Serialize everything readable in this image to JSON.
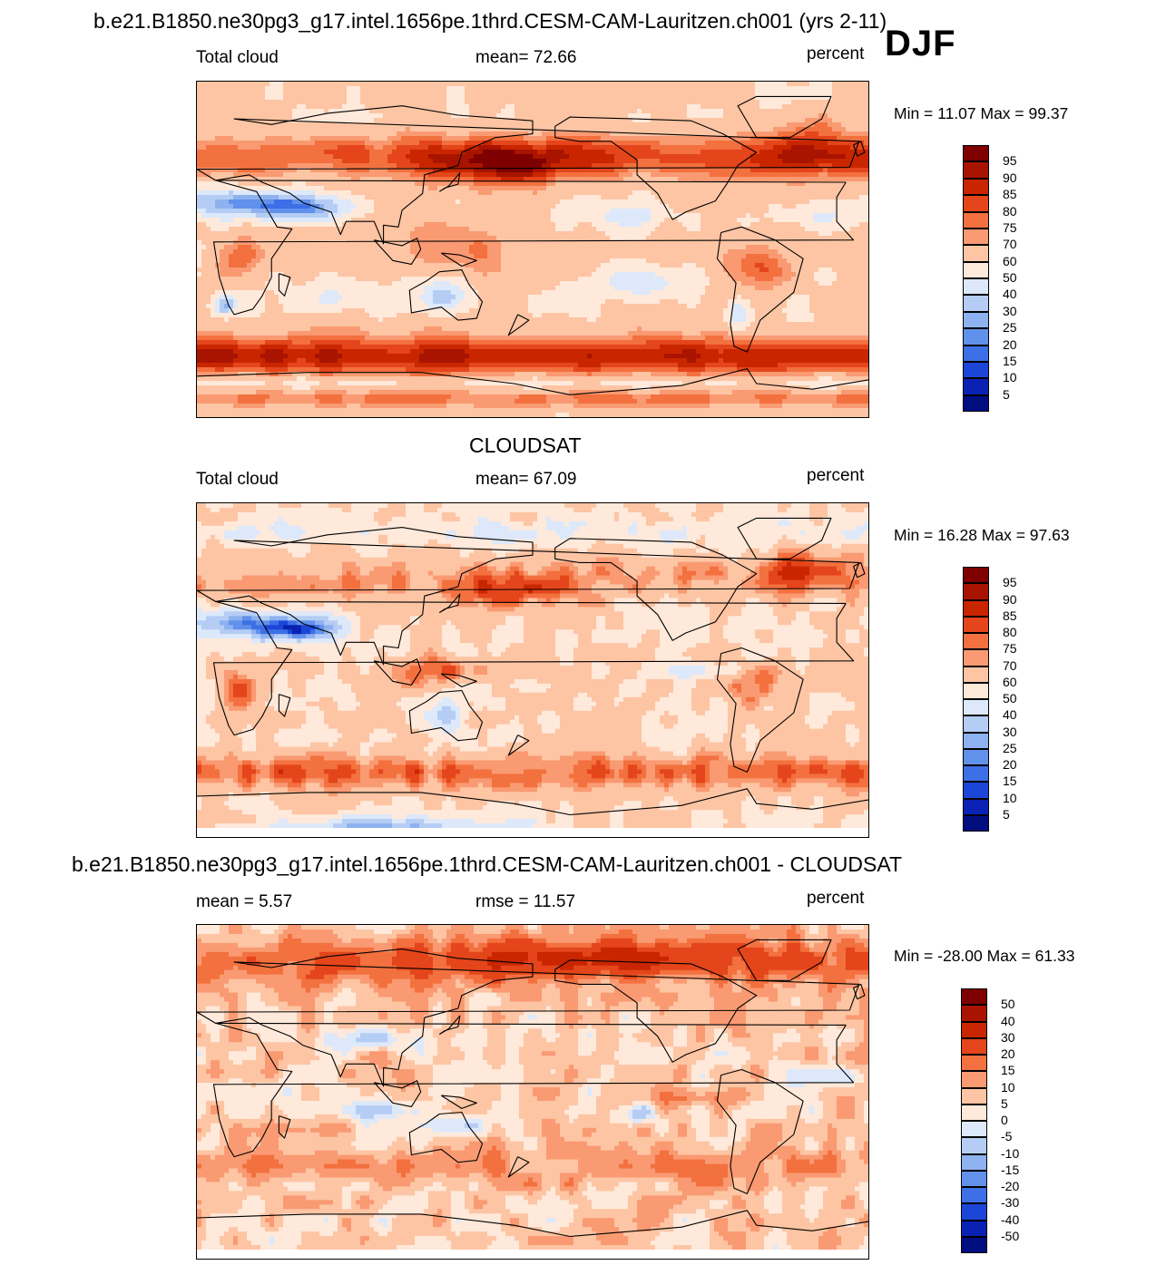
{
  "figure": {
    "title": "b.e21.B1850.ne30pg3_g17.intel.1656pe.1thrd.CESM-CAM-Lauritzen.ch001 (yrs 2-11)",
    "season": "DJF"
  },
  "panels": [
    {
      "heading": "",
      "left": "Total cloud",
      "center": "mean=  72.66",
      "right": "percent",
      "minmax": "Min =  11.07 Max =  99.37",
      "colorbar": {
        "labels": [
          "95",
          "90",
          "85",
          "80",
          "75",
          "70",
          "60",
          "50",
          "40",
          "30",
          "25",
          "20",
          "15",
          "10",
          "5"
        ],
        "colors": [
          "#7f0000",
          "#a81400",
          "#c92600",
          "#e4451a",
          "#f3703f",
          "#f99a72",
          "#fdc5a4",
          "#fee9db",
          "#dde9fa",
          "#b5cdf5",
          "#8eb1f0",
          "#6191ea",
          "#3d6fe6",
          "#1b46d8",
          "#0a22b4",
          "#000e80"
        ]
      }
    },
    {
      "heading": "CLOUDSAT",
      "left": "Total cloud",
      "center": "mean=  67.09",
      "right": "percent",
      "minmax": "Min =  16.28 Max =  97.63",
      "colorbar": {
        "labels": [
          "95",
          "90",
          "85",
          "80",
          "75",
          "70",
          "60",
          "50",
          "40",
          "30",
          "25",
          "20",
          "15",
          "10",
          "5"
        ],
        "colors": [
          "#7f0000",
          "#a81400",
          "#c92600",
          "#e4451a",
          "#f3703f",
          "#f99a72",
          "#fdc5a4",
          "#fee9db",
          "#dde9fa",
          "#b5cdf5",
          "#8eb1f0",
          "#6191ea",
          "#3d6fe6",
          "#1b46d8",
          "#0a22b4",
          "#000e80"
        ]
      }
    },
    {
      "heading": "b.e21.B1850.ne30pg3_g17.intel.1656pe.1thrd.CESM-CAM-Lauritzen.ch001 - CLOUDSAT",
      "left": "mean =   5.57",
      "center": "rmse =  11.57",
      "right": "percent",
      "minmax": "Min = -28.00 Max =  61.33",
      "colorbar": {
        "labels": [
          "50",
          "40",
          "30",
          "20",
          "15",
          "10",
          "5",
          "0",
          "-5",
          "-10",
          "-15",
          "-20",
          "-30",
          "-40",
          "-50"
        ],
        "colors": [
          "#7f0000",
          "#a81400",
          "#c92600",
          "#e4451a",
          "#f3703f",
          "#f99a72",
          "#fdc5a4",
          "#fee9db",
          "#dde9fa",
          "#b5cdf5",
          "#8eb1f0",
          "#6191ea",
          "#3d6fe6",
          "#1b46d8",
          "#0a22b4",
          "#000e80"
        ]
      }
    }
  ],
  "chart_data": [
    {
      "type": "heatmap",
      "title": "Total cloud (model, DJF)",
      "units": "percent",
      "mean": 72.66,
      "min": 11.07,
      "max": 99.37,
      "levels": [
        5,
        10,
        15,
        20,
        25,
        30,
        40,
        50,
        60,
        70,
        75,
        80,
        85,
        90,
        95
      ]
    },
    {
      "type": "heatmap",
      "title": "Total cloud (CLOUDSAT, DJF)",
      "units": "percent",
      "mean": 67.09,
      "min": 16.28,
      "max": 97.63,
      "levels": [
        5,
        10,
        15,
        20,
        25,
        30,
        40,
        50,
        60,
        70,
        75,
        80,
        85,
        90,
        95
      ]
    },
    {
      "type": "heatmap",
      "title": "Model - CLOUDSAT (DJF)",
      "units": "percent",
      "mean": 5.57,
      "rmse": 11.57,
      "min": -28.0,
      "max": 61.33,
      "levels": [
        -50,
        -40,
        -30,
        -20,
        -15,
        -10,
        -5,
        0,
        5,
        10,
        15,
        20,
        30,
        40,
        50
      ]
    }
  ]
}
